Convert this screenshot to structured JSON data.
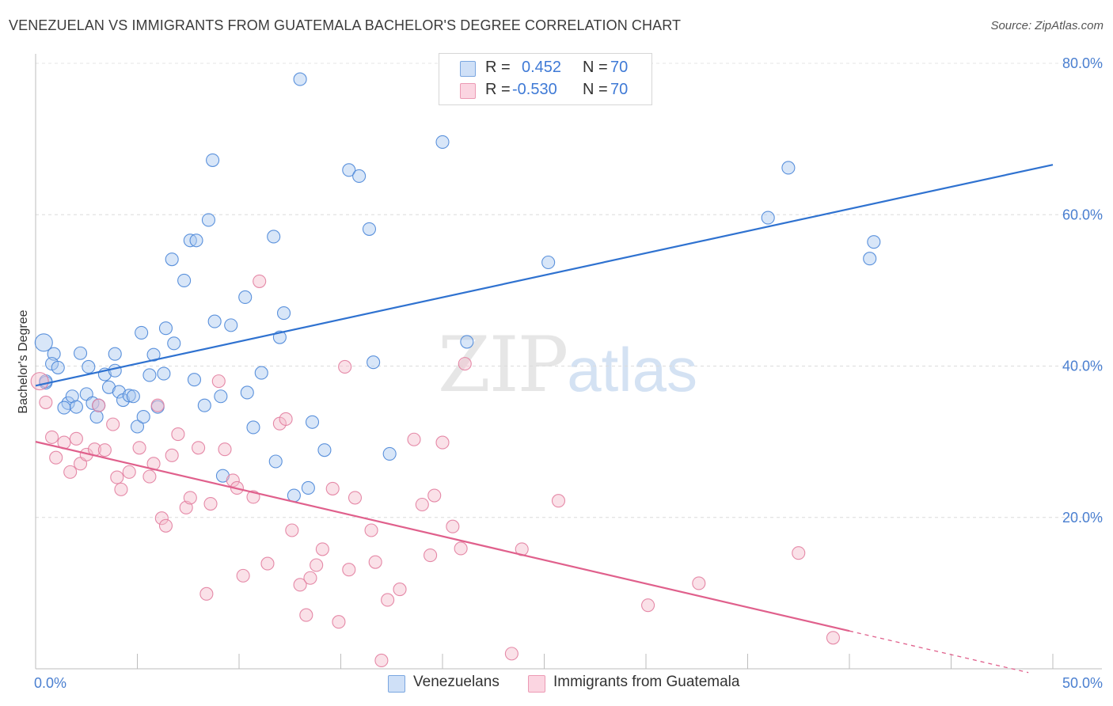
{
  "title": "VENEZUELAN VS IMMIGRANTS FROM GUATEMALA BACHELOR'S DEGREE CORRELATION CHART",
  "source": "Source: ZipAtlas.com",
  "watermark": {
    "zip": "ZIP",
    "atlas": "atlas"
  },
  "legend": {
    "rows": [
      {
        "r_label": "R =",
        "r_value": "0.452",
        "n_label": "N =",
        "n_value": "70",
        "color": "#a9c8f0"
      },
      {
        "r_label": "R =",
        "r_value": "-0.530",
        "n_label": "N =",
        "n_value": "70",
        "color": "#f5bccd"
      }
    ]
  },
  "bottom_legend": [
    {
      "label": "Venezuelans",
      "color": "#a9c8f0"
    },
    {
      "label": "Immigrants from Guatemala",
      "color": "#f5bccd"
    }
  ],
  "chart_data": {
    "type": "scatter",
    "title": "VENEZUELAN VS IMMIGRANTS FROM GUATEMALA BACHELOR'S DEGREE CORRELATION CHART",
    "xlabel": "",
    "ylabel": "Bachelor's Degree",
    "xlim": [
      0,
      50
    ],
    "ylim": [
      0,
      80
    ],
    "x_tick_labels": [
      "0.0%",
      "50.0%"
    ],
    "y_ticks": [
      20,
      40,
      60,
      80
    ],
    "y_tick_labels": [
      "20.0%",
      "40.0%",
      "60.0%",
      "80.0%"
    ],
    "grid": true,
    "legend_position": "top-center",
    "series": [
      {
        "name": "Venezuelans",
        "color": "#4a86d8",
        "fill": "#a9c8f0",
        "trend": {
          "x": [
            0,
            50
          ],
          "y": [
            37.4,
            66.6
          ],
          "color": "#2f72d0"
        },
        "points": [
          [
            0.4,
            43.1
          ],
          [
            0.5,
            37.8
          ],
          [
            0.9,
            41.6
          ],
          [
            0.8,
            40.3
          ],
          [
            1.1,
            39.8
          ],
          [
            1.6,
            35.1
          ],
          [
            1.8,
            36.0
          ],
          [
            2.0,
            34.6
          ],
          [
            2.2,
            41.7
          ],
          [
            2.5,
            36.3
          ],
          [
            2.6,
            39.9
          ],
          [
            2.8,
            35.1
          ],
          [
            3.0,
            33.3
          ],
          [
            3.1,
            34.8
          ],
          [
            3.4,
            38.9
          ],
          [
            3.6,
            37.2
          ],
          [
            3.9,
            41.6
          ],
          [
            3.9,
            39.4
          ],
          [
            4.1,
            36.6
          ],
          [
            4.3,
            35.5
          ],
          [
            4.6,
            36.1
          ],
          [
            4.8,
            36.0
          ],
          [
            5.0,
            32.0
          ],
          [
            5.2,
            44.4
          ],
          [
            5.3,
            33.3
          ],
          [
            5.6,
            38.8
          ],
          [
            5.8,
            41.5
          ],
          [
            6.0,
            34.6
          ],
          [
            6.3,
            39.0
          ],
          [
            6.4,
            45.0
          ],
          [
            6.7,
            54.1
          ],
          [
            6.8,
            43.0
          ],
          [
            7.3,
            51.3
          ],
          [
            7.6,
            56.6
          ],
          [
            7.8,
            38.2
          ],
          [
            7.9,
            56.6
          ],
          [
            8.3,
            34.8
          ],
          [
            8.5,
            59.3
          ],
          [
            8.7,
            67.2
          ],
          [
            8.8,
            45.9
          ],
          [
            9.1,
            36.0
          ],
          [
            9.2,
            25.5
          ],
          [
            9.6,
            45.4
          ],
          [
            10.3,
            49.1
          ],
          [
            10.4,
            36.5
          ],
          [
            10.7,
            31.9
          ],
          [
            11.1,
            39.1
          ],
          [
            11.7,
            57.1
          ],
          [
            11.8,
            27.4
          ],
          [
            12.0,
            43.8
          ],
          [
            12.2,
            47.0
          ],
          [
            12.7,
            22.9
          ],
          [
            13.0,
            77.9
          ],
          [
            13.4,
            23.9
          ],
          [
            13.6,
            32.6
          ],
          [
            14.2,
            28.9
          ],
          [
            15.4,
            65.9
          ],
          [
            15.9,
            65.1
          ],
          [
            16.4,
            58.1
          ],
          [
            16.6,
            40.5
          ],
          [
            17.4,
            28.4
          ],
          [
            20.0,
            69.6
          ],
          [
            21.2,
            43.2
          ],
          [
            25.2,
            53.7
          ],
          [
            36.0,
            59.6
          ],
          [
            37.0,
            66.2
          ],
          [
            41.0,
            54.2
          ],
          [
            41.2,
            56.4
          ],
          [
            0.5,
            38.0
          ],
          [
            1.4,
            34.5
          ]
        ]
      },
      {
        "name": "Immigrants from Guatemala",
        "color": "#e27d9e",
        "fill": "#f5bccd",
        "trend": {
          "x": [
            0,
            40
          ],
          "y": [
            30.0,
            5.0
          ],
          "color": "#e0608c",
          "extension": {
            "x": [
              40,
              48.8
            ],
            "y": [
              5.0,
              -0.5
            ]
          }
        },
        "points": [
          [
            0.2,
            38.0
          ],
          [
            0.5,
            35.2
          ],
          [
            0.8,
            30.6
          ],
          [
            1.0,
            27.9
          ],
          [
            1.4,
            29.9
          ],
          [
            1.7,
            26.0
          ],
          [
            2.0,
            30.4
          ],
          [
            2.2,
            27.1
          ],
          [
            2.5,
            28.3
          ],
          [
            2.9,
            29.0
          ],
          [
            3.1,
            34.8
          ],
          [
            3.4,
            28.9
          ],
          [
            3.8,
            32.3
          ],
          [
            4.0,
            25.3
          ],
          [
            4.2,
            23.7
          ],
          [
            4.6,
            26.0
          ],
          [
            5.1,
            29.2
          ],
          [
            5.6,
            25.4
          ],
          [
            5.8,
            27.1
          ],
          [
            6.0,
            34.8
          ],
          [
            6.2,
            19.9
          ],
          [
            6.4,
            18.9
          ],
          [
            6.7,
            28.2
          ],
          [
            7.0,
            31.0
          ],
          [
            7.4,
            21.3
          ],
          [
            7.6,
            22.6
          ],
          [
            8.0,
            29.2
          ],
          [
            8.4,
            9.9
          ],
          [
            8.6,
            21.8
          ],
          [
            9.0,
            38.0
          ],
          [
            9.3,
            29.0
          ],
          [
            9.7,
            24.9
          ],
          [
            9.9,
            23.9
          ],
          [
            10.2,
            12.3
          ],
          [
            10.7,
            22.7
          ],
          [
            11.0,
            51.2
          ],
          [
            11.4,
            13.9
          ],
          [
            12.0,
            32.4
          ],
          [
            12.3,
            33.0
          ],
          [
            12.6,
            18.3
          ],
          [
            13.0,
            11.1
          ],
          [
            13.3,
            7.1
          ],
          [
            13.5,
            12.0
          ],
          [
            13.8,
            13.7
          ],
          [
            14.1,
            15.8
          ],
          [
            14.6,
            23.8
          ],
          [
            14.9,
            6.2
          ],
          [
            15.2,
            39.9
          ],
          [
            15.4,
            13.1
          ],
          [
            15.7,
            22.6
          ],
          [
            16.5,
            18.3
          ],
          [
            16.7,
            14.1
          ],
          [
            17.0,
            1.1
          ],
          [
            17.3,
            9.1
          ],
          [
            17.9,
            10.5
          ],
          [
            18.6,
            30.3
          ],
          [
            19.0,
            21.7
          ],
          [
            19.4,
            15.0
          ],
          [
            19.6,
            22.9
          ],
          [
            20.0,
            29.9
          ],
          [
            20.5,
            18.8
          ],
          [
            20.9,
            15.9
          ],
          [
            21.1,
            40.3
          ],
          [
            23.4,
            2.0
          ],
          [
            23.9,
            15.8
          ],
          [
            25.7,
            22.2
          ],
          [
            30.1,
            8.4
          ],
          [
            32.6,
            11.3
          ],
          [
            37.5,
            15.3
          ],
          [
            39.2,
            4.1
          ]
        ]
      }
    ]
  }
}
